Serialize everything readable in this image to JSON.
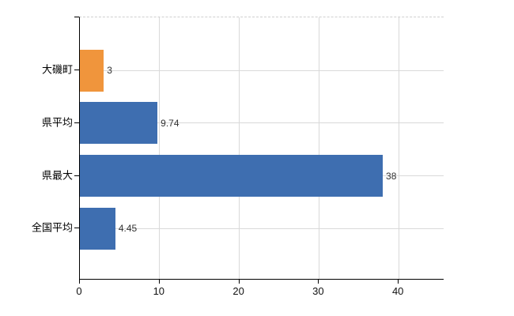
{
  "page": {
    "background": "#ffffff"
  },
  "colors": {
    "bar_default": "#3e6eb0",
    "bar_highlight": "#f0953c",
    "gridline": "#d9d9d9",
    "plot_top_border": "#cfcfcf",
    "axis": "#000000",
    "category_text": "#000000",
    "value_text": "#333333",
    "tick_text": "#111111"
  },
  "chart_data": {
    "type": "bar",
    "orientation": "horizontal",
    "title": "",
    "xlabel": "",
    "ylabel": "",
    "legend_position": "none",
    "grid": true,
    "categories": [
      "大磯町",
      "県平均",
      "県最大",
      "全国平均"
    ],
    "values": [
      3,
      9.74,
      38,
      4.45
    ],
    "value_labels": [
      "3",
      "9.74",
      "38",
      "4.45"
    ],
    "bar_colors": [
      "#f0953c",
      "#3e6eb0",
      "#3e6eb0",
      "#3e6eb0"
    ],
    "highlight_index": 0,
    "x_ticks": [
      0,
      10,
      20,
      30,
      40
    ],
    "x_tick_labels": [
      "0",
      "10",
      "20",
      "30",
      "40"
    ],
    "xlim": [
      0,
      45.6
    ]
  }
}
